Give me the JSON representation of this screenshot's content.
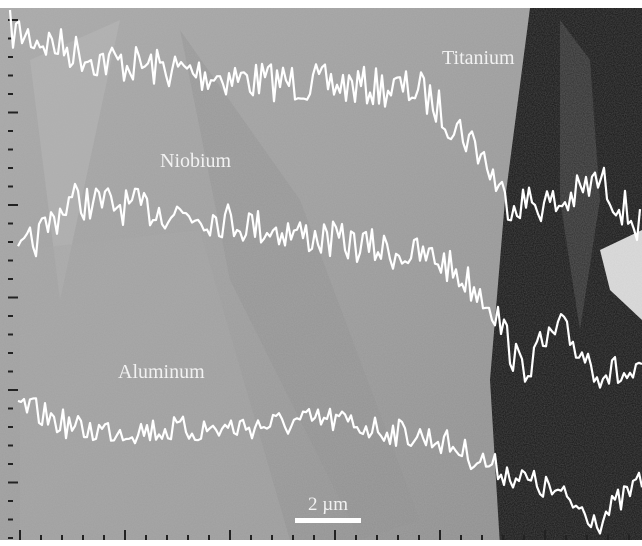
{
  "labels": {
    "titanium": "Titanium",
    "niobium": "Niobium",
    "aluminum": "Aluminum"
  },
  "scale_bar": {
    "label": "2 µm"
  }
}
